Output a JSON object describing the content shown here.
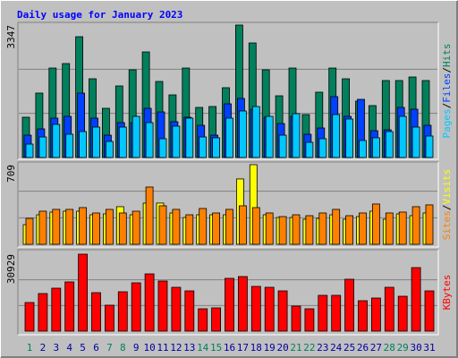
{
  "chart_data": [
    {
      "type": "bar",
      "title": "Daily usage for January 2023",
      "categories": [
        "1",
        "2",
        "3",
        "4",
        "5",
        "6",
        "7",
        "8",
        "9",
        "10",
        "11",
        "12",
        "13",
        "14",
        "15",
        "16",
        "17",
        "18",
        "19",
        "20",
        "21",
        "22",
        "23",
        "24",
        "25",
        "26",
        "27",
        "28",
        "29",
        "30",
        "31"
      ],
      "category_colors": [
        "#00805c",
        "#0000a0",
        "#0000a0",
        "#0000a0",
        "#0000a0",
        "#0000a0",
        "#00805c",
        "#00805c",
        "#0000a0",
        "#0000a0",
        "#0000a0",
        "#0000a0",
        "#0000a0",
        "#00805c",
        "#00805c",
        "#0000a0",
        "#0000a0",
        "#0000a0",
        "#0000a0",
        "#0000a0",
        "#00805c",
        "#00805c",
        "#0000a0",
        "#0000a0",
        "#0000a0",
        "#0000a0",
        "#0000a0",
        "#00805c",
        "#00805c",
        "#0000a0",
        "#0000a0"
      ],
      "legend_separator": "/",
      "ylim": [
        0,
        3347
      ],
      "yticks": [
        3347
      ],
      "series": [
        {
          "name": "Hits",
          "color": "#00805c",
          "values": [
            1018,
            1628,
            2261,
            2374,
            3053,
            1990,
            1244,
            1809,
            2216,
            2668,
            1922,
            1583,
            2261,
            1266,
            1289,
            1764,
            3347,
            2895,
            2216,
            1560,
            2261,
            1085,
            1651,
            2261,
            1990,
            1425,
            1312,
            1945,
            1945,
            2035,
            1945
          ]
        },
        {
          "name": "Files",
          "color": "#0040ff",
          "values": [
            565,
            724,
            995,
            1040,
            1628,
            995,
            565,
            882,
            882,
            1244,
            1153,
            905,
            1018,
            814,
            565,
            1357,
            1493,
            1221,
            1018,
            859,
            1040,
            588,
            746,
            1538,
            1040,
            1470,
            678,
            701,
            1266,
            1221,
            814
          ]
        },
        {
          "name": "Pages",
          "color": "#00c8ff",
          "values": [
            339,
            520,
            837,
            588,
            656,
            769,
            407,
            769,
            1040,
            882,
            475,
            792,
            995,
            520,
            498,
            995,
            1176,
            1289,
            1040,
            565,
            1108,
            384,
            475,
            1085,
            973,
            430,
            498,
            656,
            1040,
            769,
            543
          ]
        }
      ]
    },
    {
      "type": "bar",
      "ylim": [
        0,
        709
      ],
      "yticks": [
        709
      ],
      "series": [
        {
          "name": "Visits",
          "color": "#ffff00",
          "values": [
            175,
            263,
            287,
            295,
            295,
            263,
            271,
            335,
            263,
            367,
            367,
            279,
            239,
            263,
            263,
            263,
            582,
            709,
            263,
            239,
            239,
            223,
            231,
            263,
            223,
            247,
            295,
            223,
            271,
            255,
            279
          ]
        },
        {
          "name": "Sites",
          "color": "#ff8000",
          "values": [
            231,
            295,
            311,
            311,
            327,
            279,
            311,
            279,
            295,
            510,
            343,
            311,
            263,
            319,
            279,
            311,
            343,
            327,
            279,
            247,
            263,
            255,
            279,
            311,
            255,
            279,
            359,
            279,
            287,
            335,
            351
          ]
        }
      ]
    },
    {
      "type": "bar",
      "ylim": [
        0,
        30929
      ],
      "yticks": [
        30929
      ],
      "series": [
        {
          "name": "KBytes",
          "color": "#ff0000",
          "values": [
            11508,
            15105,
            17263,
            19780,
            30929,
            15465,
            10429,
            15825,
            19421,
            23017,
            20140,
            17622,
            16184,
            8991,
            9351,
            21219,
            21938,
            17982,
            17622,
            16184,
            10070,
            8991,
            14386,
            14386,
            20859,
            12228,
            13307,
            17622,
            14026,
            25534,
            16184
          ]
        }
      ]
    }
  ]
}
